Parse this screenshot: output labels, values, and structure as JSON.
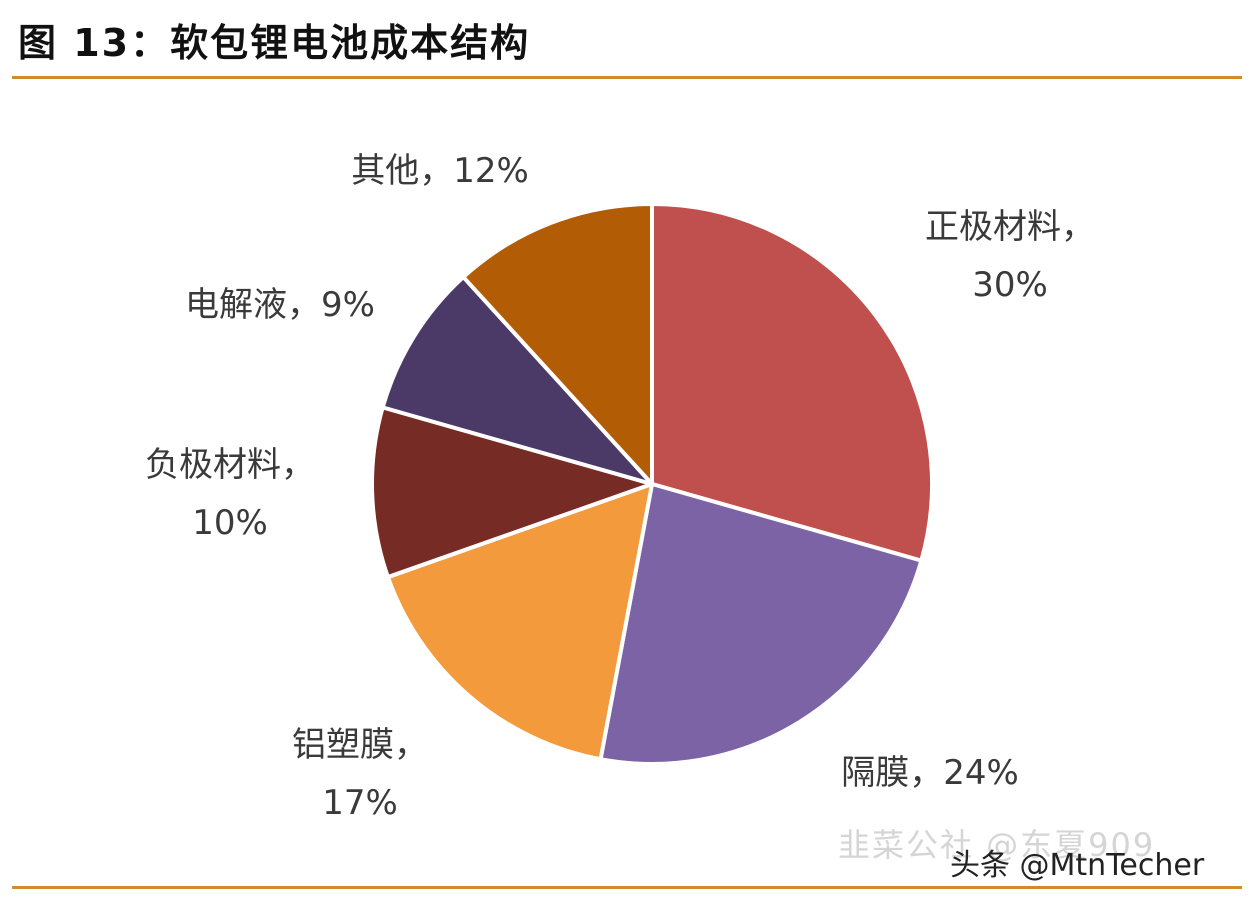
{
  "title": "图 13：软包锂电池成本结构",
  "chart_data": {
    "type": "pie",
    "title": "图 13：软包锂电池成本结构",
    "slices": [
      {
        "label": "正极材料",
        "value": 30,
        "text": "30%",
        "color": "#c0504d"
      },
      {
        "label": "隔膜",
        "value": 24,
        "text": "24%",
        "color": "#7b63a6"
      },
      {
        "label": "铝塑膜",
        "value": 17,
        "text": "17%",
        "color": "#f39a3c"
      },
      {
        "label": "负极材料",
        "value": 10,
        "text": "10%",
        "color": "#772b25"
      },
      {
        "label": "电解液",
        "value": 9,
        "text": "9%",
        "color": "#4b3a68"
      },
      {
        "label": "其他",
        "value": 12,
        "text": "12%",
        "color": "#b25c06"
      }
    ],
    "start_angle_deg": 0,
    "direction": "clockwise"
  },
  "watermark": {
    "faint": "韭菜公社 @东夏909",
    "main": "头条 @MtnTecher"
  },
  "colors": {
    "rule": "#d28a2a",
    "slice_border": "#ffffff"
  }
}
